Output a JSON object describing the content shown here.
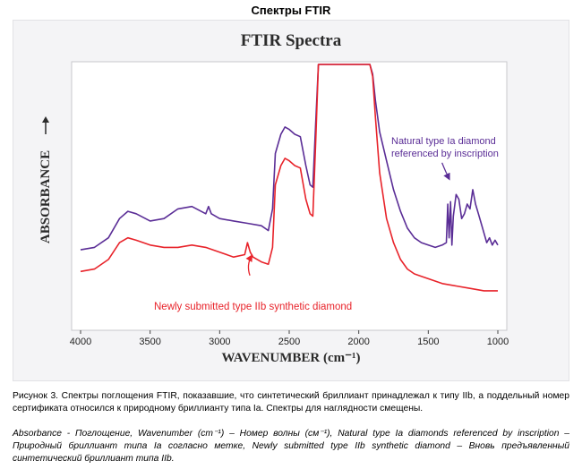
{
  "page": {
    "heading": "Спектры FTIR",
    "caption": "Рисунок 3. Спектры поглощения FTIR, показавшие, что синтетический бриллиант принадлежал к типу IIb, а поддельный номер сертификата относился к природному бриллианту типа Ia. Спектры для наглядности смещены.",
    "note": "Absorbance - Поглощение, Wavenumber (cm⁻¹) – Номер волны (см⁻¹), Natural type Ia diamonds referenced by inscription – Природный бриллиант типа Ia согласно метке, Newly submitted type IIb synthetic diamond – Вновь предъявленный синтетический бриллиант типа IIb."
  },
  "chart_data": {
    "type": "line",
    "title": "FTIR Spectra",
    "xlabel": "WAVENUMBER (cm⁻¹)",
    "ylabel": "ABSORBANCE",
    "xlim": [
      4000,
      1000
    ],
    "x_reversed": true,
    "ylim": [
      0,
      100
    ],
    "y_ticks_shown": false,
    "grid": false,
    "x_ticks": [
      4000,
      3500,
      3000,
      2500,
      2000,
      1500,
      1000
    ],
    "annotations": [
      {
        "series": "purple",
        "lines": [
          "Natural type Ia diamond",
          "referenced by inscription"
        ],
        "arrow_to_x": 1350,
        "arrow_to_y": 51
      },
      {
        "series": "red",
        "lines": [
          "Newly submitted type IIb synthetic diamond"
        ],
        "arrow_to_x": 2770,
        "arrow_to_y": 22
      }
    ],
    "series": [
      {
        "key": "purple",
        "color": "#5a2d96",
        "x": [
          4000,
          3900,
          3800,
          3720,
          3660,
          3600,
          3500,
          3400,
          3300,
          3200,
          3100,
          3080,
          3060,
          3000,
          2900,
          2800,
          2700,
          2650,
          2620,
          2600,
          2560,
          2530,
          2500,
          2460,
          2420,
          2380,
          2350,
          2330,
          2310,
          2290,
          2270,
          2250,
          2000,
          1920,
          1900,
          1880,
          1850,
          1800,
          1750,
          1700,
          1650,
          1600,
          1550,
          1500,
          1450,
          1400,
          1370,
          1360,
          1350,
          1340,
          1330,
          1320,
          1300,
          1280,
          1260,
          1240,
          1220,
          1200,
          1180,
          1160,
          1140,
          1120,
          1100,
          1080,
          1060,
          1040,
          1020,
          1000
        ],
        "y": [
          23,
          24,
          28,
          36,
          39,
          38,
          35,
          36,
          40,
          41,
          38,
          41,
          38,
          36,
          35,
          34,
          33,
          31,
          40,
          63,
          71,
          74,
          73,
          71,
          70,
          58,
          50,
          49,
          75,
          100,
          100,
          100,
          100,
          100,
          96,
          85,
          72,
          60,
          48,
          39,
          32,
          28,
          26,
          25,
          24,
          25,
          26,
          42,
          28,
          43,
          25,
          37,
          46,
          44,
          36,
          38,
          42,
          40,
          48,
          42,
          38,
          34,
          30,
          26,
          28,
          25,
          27,
          25
        ]
      },
      {
        "key": "red",
        "color": "#e8232a",
        "x": [
          4000,
          3900,
          3800,
          3720,
          3660,
          3600,
          3500,
          3400,
          3300,
          3200,
          3100,
          3000,
          2900,
          2820,
          2800,
          2780,
          2760,
          2700,
          2650,
          2620,
          2600,
          2560,
          2530,
          2500,
          2460,
          2420,
          2380,
          2350,
          2330,
          2310,
          2290,
          2270,
          2250,
          2000,
          1920,
          1900,
          1880,
          1850,
          1800,
          1750,
          1700,
          1650,
          1600,
          1550,
          1500,
          1400,
          1300,
          1200,
          1100,
          1000
        ],
        "y": [
          14,
          15,
          19,
          26,
          28,
          27,
          25,
          24,
          24,
          25,
          24,
          22,
          20,
          21,
          26,
          22,
          20,
          18,
          17,
          24,
          50,
          58,
          61,
          60,
          58,
          57,
          44,
          38,
          37,
          67,
          100,
          100,
          100,
          100,
          100,
          95,
          78,
          55,
          36,
          26,
          19,
          15,
          13,
          12,
          11,
          9,
          8,
          7,
          6,
          6
        ]
      }
    ]
  }
}
